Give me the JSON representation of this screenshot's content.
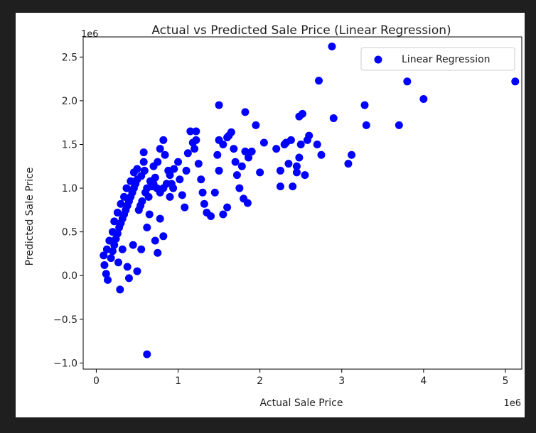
{
  "chart_data": {
    "type": "scatter",
    "title": "Actual vs Predicted Sale Price (Linear Regression)",
    "xlabel": "Actual Sale Price",
    "ylabel": "Predicted Sale Price",
    "x_offset_label": "1e6",
    "y_offset_label": "1e6",
    "xlim": [
      -0.16,
      5.2
    ],
    "ylim": [
      -1.07,
      2.73
    ],
    "x_ticks": [
      0,
      1,
      2,
      3,
      4,
      5
    ],
    "x_tick_labels": [
      "0",
      "1",
      "2",
      "3",
      "4",
      "5"
    ],
    "y_ticks": [
      -1.0,
      -0.5,
      0.0,
      0.5,
      1.0,
      1.5,
      2.0,
      2.5
    ],
    "y_tick_labels": [
      "−1.0",
      "−0.5",
      "0.0",
      "0.5",
      "1.0",
      "1.5",
      "2.0",
      "2.5"
    ],
    "grid": false,
    "legend_position": "top-right",
    "series": [
      {
        "name": "Linear Regression",
        "color": "#0000ff",
        "marker": "circle",
        "points": [
          [
            0.29,
            -0.16
          ],
          [
            0.14,
            -0.05
          ],
          [
            0.12,
            0.02
          ],
          [
            0.1,
            0.12
          ],
          [
            0.09,
            0.23
          ],
          [
            0.13,
            0.3
          ],
          [
            0.16,
            0.4
          ],
          [
            0.2,
            0.5
          ],
          [
            0.22,
            0.62
          ],
          [
            0.26,
            0.72
          ],
          [
            0.3,
            0.82
          ],
          [
            0.34,
            0.9
          ],
          [
            0.37,
            1.0
          ],
          [
            0.42,
            1.08
          ],
          [
            0.46,
            1.18
          ],
          [
            0.5,
            1.22
          ],
          [
            0.55,
            1.14
          ],
          [
            0.59,
            1.2
          ],
          [
            0.58,
            1.3
          ],
          [
            0.58,
            1.41
          ],
          [
            0.62,
            -0.9
          ],
          [
            0.62,
            0.55
          ],
          [
            0.64,
            0.9
          ],
          [
            0.68,
            1.02
          ],
          [
            0.7,
            1.25
          ],
          [
            0.72,
            1.12
          ],
          [
            0.75,
            1.3
          ],
          [
            0.78,
            1.45
          ],
          [
            0.82,
            1.55
          ],
          [
            0.84,
            1.38
          ],
          [
            0.88,
            1.2
          ],
          [
            0.9,
            0.9
          ],
          [
            0.82,
            0.45
          ],
          [
            0.72,
            0.4
          ],
          [
            0.75,
            0.26
          ],
          [
            0.5,
            0.05
          ],
          [
            0.38,
            0.1
          ],
          [
            0.4,
            -0.03
          ],
          [
            0.27,
            0.15
          ],
          [
            0.32,
            0.3
          ],
          [
            0.45,
            0.35
          ],
          [
            0.55,
            0.3
          ],
          [
            0.65,
            0.7
          ],
          [
            0.78,
            0.65
          ],
          [
            0.92,
            1.05
          ],
          [
            0.95,
            1.22
          ],
          [
            1.0,
            1.3
          ],
          [
            1.02,
            1.1
          ],
          [
            1.05,
            0.92
          ],
          [
            1.08,
            0.78
          ],
          [
            1.1,
            1.2
          ],
          [
            1.12,
            1.4
          ],
          [
            1.15,
            1.65
          ],
          [
            1.22,
            1.65
          ],
          [
            1.18,
            1.52
          ],
          [
            1.22,
            1.55
          ],
          [
            1.2,
            1.45
          ],
          [
            1.25,
            1.28
          ],
          [
            1.28,
            1.1
          ],
          [
            1.3,
            0.95
          ],
          [
            1.32,
            0.82
          ],
          [
            1.35,
            0.72
          ],
          [
            1.4,
            0.68
          ],
          [
            1.45,
            0.95
          ],
          [
            1.5,
            1.2
          ],
          [
            1.48,
            1.38
          ],
          [
            1.5,
            1.55
          ],
          [
            1.5,
            1.95
          ],
          [
            1.55,
            1.5
          ],
          [
            1.6,
            1.58
          ],
          [
            1.62,
            1.6
          ],
          [
            1.65,
            1.64
          ],
          [
            1.68,
            1.45
          ],
          [
            1.7,
            1.3
          ],
          [
            1.72,
            1.15
          ],
          [
            1.75,
            1.0
          ],
          [
            1.55,
            0.7
          ],
          [
            1.6,
            0.78
          ],
          [
            1.8,
            0.88
          ],
          [
            1.85,
            0.83
          ],
          [
            1.78,
            1.25
          ],
          [
            1.82,
            1.42
          ],
          [
            1.86,
            1.35
          ],
          [
            1.9,
            1.42
          ],
          [
            1.95,
            1.72
          ],
          [
            1.82,
            1.87
          ],
          [
            2.0,
            1.18
          ],
          [
            2.05,
            1.52
          ],
          [
            2.2,
            1.45
          ],
          [
            2.25,
            1.2
          ],
          [
            2.3,
            1.5
          ],
          [
            2.35,
            1.28
          ],
          [
            2.38,
            1.55
          ],
          [
            2.32,
            1.52
          ],
          [
            2.4,
            1.02
          ],
          [
            2.25,
            1.02
          ],
          [
            2.45,
            1.18
          ],
          [
            2.45,
            1.25
          ],
          [
            2.48,
            1.35
          ],
          [
            2.5,
            1.5
          ],
          [
            2.55,
            1.15
          ],
          [
            2.58,
            1.55
          ],
          [
            2.6,
            1.6
          ],
          [
            2.7,
            1.5
          ],
          [
            2.75,
            1.38
          ],
          [
            2.72,
            2.23
          ],
          [
            2.48,
            1.82
          ],
          [
            2.52,
            1.85
          ],
          [
            2.88,
            2.62
          ],
          [
            2.9,
            1.8
          ],
          [
            3.12,
            1.38
          ],
          [
            3.08,
            1.28
          ],
          [
            3.28,
            1.95
          ],
          [
            3.3,
            1.72
          ],
          [
            3.7,
            1.72
          ],
          [
            3.8,
            2.22
          ],
          [
            4.0,
            2.02
          ],
          [
            5.12,
            2.22
          ],
          [
            0.18,
            0.2
          ],
          [
            0.2,
            0.28
          ],
          [
            0.22,
            0.35
          ],
          [
            0.24,
            0.42
          ],
          [
            0.26,
            0.48
          ],
          [
            0.28,
            0.55
          ],
          [
            0.3,
            0.6
          ],
          [
            0.32,
            0.65
          ],
          [
            0.34,
            0.7
          ],
          [
            0.36,
            0.75
          ],
          [
            0.38,
            0.8
          ],
          [
            0.4,
            0.85
          ],
          [
            0.42,
            0.9
          ],
          [
            0.44,
            0.95
          ],
          [
            0.46,
            1.0
          ],
          [
            0.48,
            1.05
          ],
          [
            0.5,
            1.1
          ],
          [
            0.52,
            0.75
          ],
          [
            0.54,
            0.8
          ],
          [
            0.56,
            0.85
          ],
          [
            0.6,
            0.95
          ],
          [
            0.62,
            1.0
          ],
          [
            0.66,
            1.08
          ],
          [
            0.7,
            1.05
          ],
          [
            0.74,
            1.0
          ],
          [
            0.78,
            0.95
          ],
          [
            0.82,
            1.0
          ],
          [
            0.86,
            1.05
          ],
          [
            0.9,
            1.15
          ],
          [
            0.94,
            1.0
          ]
        ]
      }
    ]
  }
}
